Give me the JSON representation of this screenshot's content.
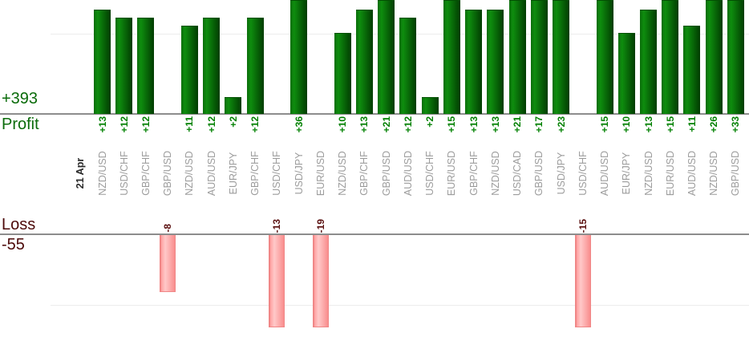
{
  "chart_data": {
    "type": "bar",
    "title": "",
    "date_label": "21 Apr",
    "bar_orientation": "vertical",
    "categories": [
      "NZD/USD",
      "USD/CHF",
      "GBP/CHF",
      "GBP/USD",
      "NZD/USD",
      "AUD/USD",
      "EUR/JPY",
      "GBP/CHF",
      "USD/CHF",
      "USD/JPY",
      "EUR/USD",
      "NZD/USD",
      "GBP/CHF",
      "GBP/USD",
      "AUD/USD",
      "USD/CHF",
      "EUR/USD",
      "GBP/CHF",
      "NZD/USD",
      "USD/CAD",
      "GBP/USD",
      "USD/JPY",
      "USD/CHF",
      "AUD/USD",
      "EUR/JPY",
      "NZD/USD",
      "EUR/USD",
      "AUD/USD",
      "NZD/USD",
      "GBP/USD"
    ],
    "series": [
      {
        "name": "Profit",
        "total": 393,
        "total_label": "+393",
        "values": [
          13,
          12,
          12,
          null,
          11,
          12,
          2,
          12,
          null,
          36,
          null,
          10,
          13,
          21,
          12,
          2,
          15,
          13,
          13,
          21,
          17,
          23,
          null,
          15,
          10,
          13,
          15,
          11,
          26,
          33
        ]
      },
      {
        "name": "Loss",
        "total": -55,
        "total_label": "-55",
        "values": [
          null,
          null,
          null,
          -8,
          null,
          null,
          null,
          null,
          -13,
          null,
          -19,
          null,
          null,
          null,
          null,
          null,
          null,
          null,
          null,
          null,
          null,
          null,
          -15,
          null,
          null,
          null,
          null,
          null,
          null,
          null
        ]
      }
    ],
    "colors": {
      "profit_bar": "#0e8d0e",
      "profit_bar_dark": "#013c01",
      "profit_value_text": "#008000",
      "profit_axis_text": "#0a6b0a",
      "loss_bar": "#ffc9c9",
      "loss_bar_border": "#f08787",
      "loss_value_text": "#5a0f0f",
      "loss_axis_text": "#4d0a0a",
      "category_text": "#9c9c9c",
      "date_text": "#2a2a2a",
      "axis_line": "#8d8d8d",
      "gridline": "#ededed"
    },
    "layout": {
      "panels": [
        {
          "name": "Profit",
          "position": "top",
          "baseline_at_bottom_of_panel": true
        },
        {
          "name": "Loss",
          "position": "bottom",
          "bars_hang_below_baseline": true
        }
      ],
      "grid": true,
      "legend": "none",
      "value_label_rotation_deg": -90,
      "category_label_rotation_deg": -90,
      "note": "tall bars are clipped at the top and bottom edges of the visible area"
    }
  }
}
